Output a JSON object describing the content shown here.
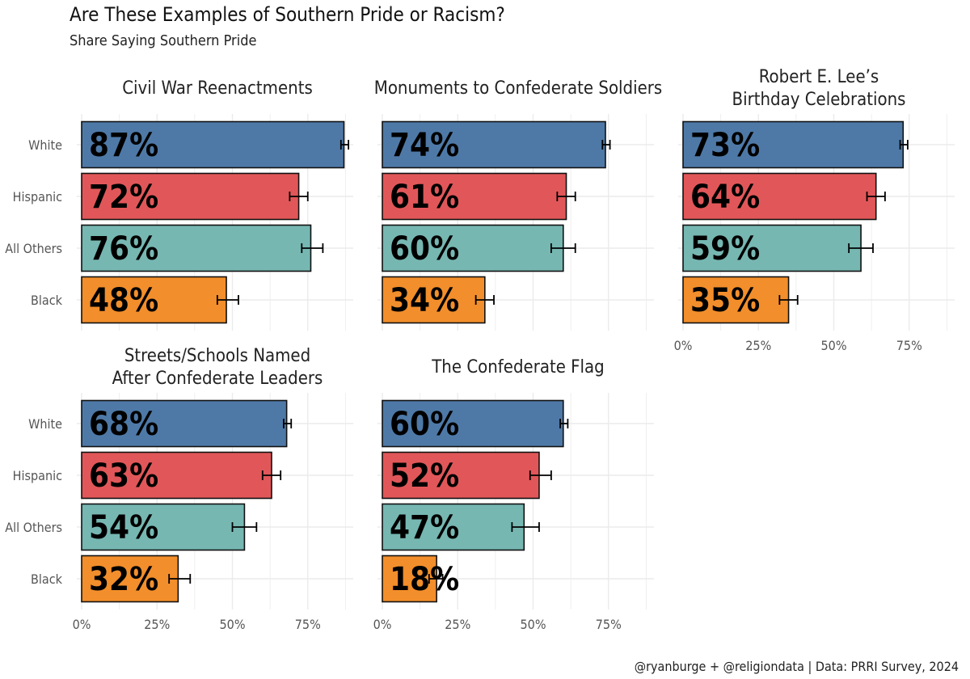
{
  "title": "Are These Examples of Southern Pride or Racism?",
  "subtitle": "Share Saying Southern Pride",
  "caption": "@ryanburge + @religiondata | Data: PRRI Survey, 2024",
  "colors": {
    "White": "#4E79A7",
    "Hispanic": "#E15759",
    "All Others": "#76B7B2",
    "Black": "#F28E2B",
    "grid": "#ebebeb"
  },
  "chart_data": {
    "type": "bar",
    "orientation": "horizontal",
    "categories": [
      "White",
      "Hispanic",
      "All Others",
      "Black"
    ],
    "xlim": [
      0,
      90
    ],
    "x_ticks": [
      0,
      25,
      50,
      75
    ],
    "x_tick_labels": [
      "0%",
      "25%",
      "50%",
      "75%"
    ],
    "facets": [
      {
        "title": [
          "Civil War Reenactments"
        ],
        "values": [
          87,
          72,
          76,
          48
        ],
        "labels": [
          "87%",
          "72%",
          "76%",
          "48%"
        ],
        "err_low": [
          86,
          69,
          73,
          45
        ],
        "err_high": [
          88.5,
          75,
          80,
          52
        ]
      },
      {
        "title": [
          "Monuments to Confederate Soldiers"
        ],
        "values": [
          74,
          61,
          60,
          34
        ],
        "labels": [
          "74%",
          "61%",
          "60%",
          "34%"
        ],
        "err_low": [
          73,
          58,
          56,
          31
        ],
        "err_high": [
          75.5,
          64,
          64,
          37
        ]
      },
      {
        "title": [
          "Robert E. Lee’s",
          "Birthday Celebrations"
        ],
        "values": [
          73,
          64,
          59,
          35
        ],
        "labels": [
          "73%",
          "64%",
          "59%",
          "35%"
        ],
        "err_low": [
          72,
          61,
          55,
          32
        ],
        "err_high": [
          74.5,
          67,
          63,
          38
        ]
      },
      {
        "title": [
          "Streets/Schools Named",
          "After Confederate Leaders"
        ],
        "values": [
          68,
          63,
          54,
          32
        ],
        "labels": [
          "68%",
          "63%",
          "54%",
          "32%"
        ],
        "err_low": [
          67,
          60,
          50,
          29
        ],
        "err_high": [
          69.5,
          66,
          58,
          36
        ]
      },
      {
        "title": [
          "The Confederate Flag"
        ],
        "values": [
          60,
          52,
          47,
          18
        ],
        "labels": [
          "60%",
          "52%",
          "47%",
          "18%"
        ],
        "err_low": [
          59,
          49,
          43,
          15.5
        ],
        "err_high": [
          61.5,
          56,
          52,
          20
        ]
      }
    ]
  }
}
